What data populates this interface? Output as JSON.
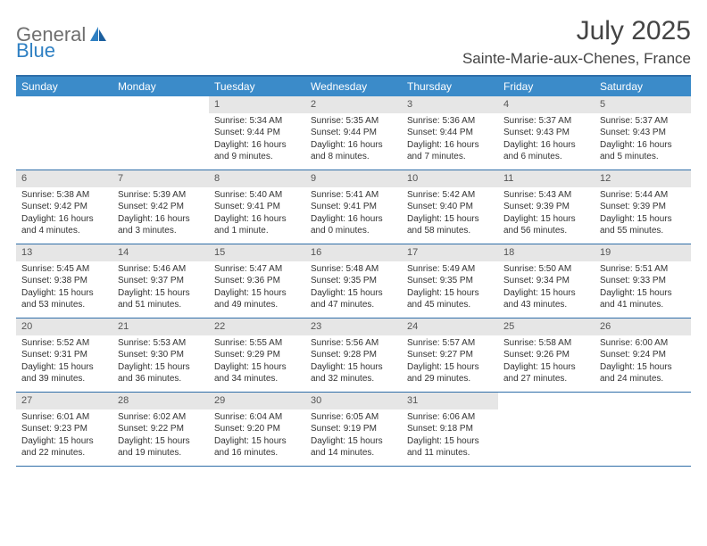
{
  "logo": {
    "part1": "General",
    "part2": "Blue"
  },
  "title": "July 2025",
  "location": "Sainte-Marie-aux-Chenes, France",
  "colors": {
    "header_bg": "#3b8bc9",
    "border": "#2f6ea8",
    "daynum_bg": "#e6e6e6",
    "text": "#333333",
    "logo_gray": "#6f6f6f",
    "logo_blue": "#2f80c3"
  },
  "weekdays": [
    "Sunday",
    "Monday",
    "Tuesday",
    "Wednesday",
    "Thursday",
    "Friday",
    "Saturday"
  ],
  "weeks": [
    [
      {
        "blank": true
      },
      {
        "blank": true
      },
      {
        "num": "1",
        "sunrise": "Sunrise: 5:34 AM",
        "sunset": "Sunset: 9:44 PM",
        "daylight": "Daylight: 16 hours and 9 minutes."
      },
      {
        "num": "2",
        "sunrise": "Sunrise: 5:35 AM",
        "sunset": "Sunset: 9:44 PM",
        "daylight": "Daylight: 16 hours and 8 minutes."
      },
      {
        "num": "3",
        "sunrise": "Sunrise: 5:36 AM",
        "sunset": "Sunset: 9:44 PM",
        "daylight": "Daylight: 16 hours and 7 minutes."
      },
      {
        "num": "4",
        "sunrise": "Sunrise: 5:37 AM",
        "sunset": "Sunset: 9:43 PM",
        "daylight": "Daylight: 16 hours and 6 minutes."
      },
      {
        "num": "5",
        "sunrise": "Sunrise: 5:37 AM",
        "sunset": "Sunset: 9:43 PM",
        "daylight": "Daylight: 16 hours and 5 minutes."
      }
    ],
    [
      {
        "num": "6",
        "sunrise": "Sunrise: 5:38 AM",
        "sunset": "Sunset: 9:42 PM",
        "daylight": "Daylight: 16 hours and 4 minutes."
      },
      {
        "num": "7",
        "sunrise": "Sunrise: 5:39 AM",
        "sunset": "Sunset: 9:42 PM",
        "daylight": "Daylight: 16 hours and 3 minutes."
      },
      {
        "num": "8",
        "sunrise": "Sunrise: 5:40 AM",
        "sunset": "Sunset: 9:41 PM",
        "daylight": "Daylight: 16 hours and 1 minute."
      },
      {
        "num": "9",
        "sunrise": "Sunrise: 5:41 AM",
        "sunset": "Sunset: 9:41 PM",
        "daylight": "Daylight: 16 hours and 0 minutes."
      },
      {
        "num": "10",
        "sunrise": "Sunrise: 5:42 AM",
        "sunset": "Sunset: 9:40 PM",
        "daylight": "Daylight: 15 hours and 58 minutes."
      },
      {
        "num": "11",
        "sunrise": "Sunrise: 5:43 AM",
        "sunset": "Sunset: 9:39 PM",
        "daylight": "Daylight: 15 hours and 56 minutes."
      },
      {
        "num": "12",
        "sunrise": "Sunrise: 5:44 AM",
        "sunset": "Sunset: 9:39 PM",
        "daylight": "Daylight: 15 hours and 55 minutes."
      }
    ],
    [
      {
        "num": "13",
        "sunrise": "Sunrise: 5:45 AM",
        "sunset": "Sunset: 9:38 PM",
        "daylight": "Daylight: 15 hours and 53 minutes."
      },
      {
        "num": "14",
        "sunrise": "Sunrise: 5:46 AM",
        "sunset": "Sunset: 9:37 PM",
        "daylight": "Daylight: 15 hours and 51 minutes."
      },
      {
        "num": "15",
        "sunrise": "Sunrise: 5:47 AM",
        "sunset": "Sunset: 9:36 PM",
        "daylight": "Daylight: 15 hours and 49 minutes."
      },
      {
        "num": "16",
        "sunrise": "Sunrise: 5:48 AM",
        "sunset": "Sunset: 9:35 PM",
        "daylight": "Daylight: 15 hours and 47 minutes."
      },
      {
        "num": "17",
        "sunrise": "Sunrise: 5:49 AM",
        "sunset": "Sunset: 9:35 PM",
        "daylight": "Daylight: 15 hours and 45 minutes."
      },
      {
        "num": "18",
        "sunrise": "Sunrise: 5:50 AM",
        "sunset": "Sunset: 9:34 PM",
        "daylight": "Daylight: 15 hours and 43 minutes."
      },
      {
        "num": "19",
        "sunrise": "Sunrise: 5:51 AM",
        "sunset": "Sunset: 9:33 PM",
        "daylight": "Daylight: 15 hours and 41 minutes."
      }
    ],
    [
      {
        "num": "20",
        "sunrise": "Sunrise: 5:52 AM",
        "sunset": "Sunset: 9:31 PM",
        "daylight": "Daylight: 15 hours and 39 minutes."
      },
      {
        "num": "21",
        "sunrise": "Sunrise: 5:53 AM",
        "sunset": "Sunset: 9:30 PM",
        "daylight": "Daylight: 15 hours and 36 minutes."
      },
      {
        "num": "22",
        "sunrise": "Sunrise: 5:55 AM",
        "sunset": "Sunset: 9:29 PM",
        "daylight": "Daylight: 15 hours and 34 minutes."
      },
      {
        "num": "23",
        "sunrise": "Sunrise: 5:56 AM",
        "sunset": "Sunset: 9:28 PM",
        "daylight": "Daylight: 15 hours and 32 minutes."
      },
      {
        "num": "24",
        "sunrise": "Sunrise: 5:57 AM",
        "sunset": "Sunset: 9:27 PM",
        "daylight": "Daylight: 15 hours and 29 minutes."
      },
      {
        "num": "25",
        "sunrise": "Sunrise: 5:58 AM",
        "sunset": "Sunset: 9:26 PM",
        "daylight": "Daylight: 15 hours and 27 minutes."
      },
      {
        "num": "26",
        "sunrise": "Sunrise: 6:00 AM",
        "sunset": "Sunset: 9:24 PM",
        "daylight": "Daylight: 15 hours and 24 minutes."
      }
    ],
    [
      {
        "num": "27",
        "sunrise": "Sunrise: 6:01 AM",
        "sunset": "Sunset: 9:23 PM",
        "daylight": "Daylight: 15 hours and 22 minutes."
      },
      {
        "num": "28",
        "sunrise": "Sunrise: 6:02 AM",
        "sunset": "Sunset: 9:22 PM",
        "daylight": "Daylight: 15 hours and 19 minutes."
      },
      {
        "num": "29",
        "sunrise": "Sunrise: 6:04 AM",
        "sunset": "Sunset: 9:20 PM",
        "daylight": "Daylight: 15 hours and 16 minutes."
      },
      {
        "num": "30",
        "sunrise": "Sunrise: 6:05 AM",
        "sunset": "Sunset: 9:19 PM",
        "daylight": "Daylight: 15 hours and 14 minutes."
      },
      {
        "num": "31",
        "sunrise": "Sunrise: 6:06 AM",
        "sunset": "Sunset: 9:18 PM",
        "daylight": "Daylight: 15 hours and 11 minutes."
      },
      {
        "blank": true
      },
      {
        "blank": true
      }
    ]
  ]
}
